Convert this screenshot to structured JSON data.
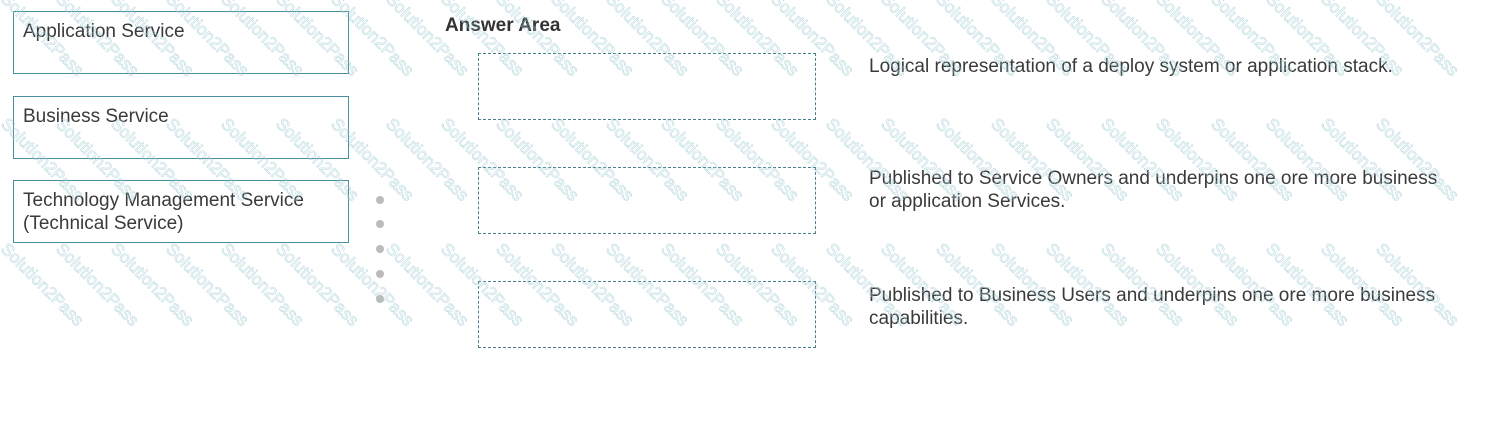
{
  "watermark": "Solution2Pass",
  "source_items": [
    {
      "label": "Application Service"
    },
    {
      "label": "Business Service"
    },
    {
      "label": "Technology Management Service (Technical Service)"
    }
  ],
  "answer_area": {
    "title": "Answer Area",
    "rows": [
      {
        "target": "",
        "description": "Logical representation of a deploy system or application stack."
      },
      {
        "target": "",
        "description": "Published to Service Owners and underpins one ore more business or application Services."
      },
      {
        "target": "",
        "description": "Published to Business Users and underpins one ore more business capabilities."
      }
    ]
  },
  "colors": {
    "box_border": "#4a8fa0",
    "watermark": "#9cc9d0"
  }
}
